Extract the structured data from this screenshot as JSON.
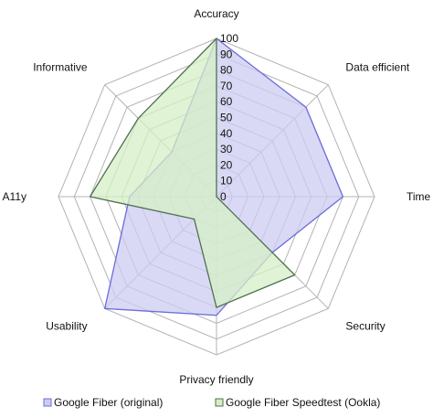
{
  "chart_data": {
    "type": "radar",
    "axes": [
      "Accuracy",
      "Data efficient",
      "Time",
      "Security",
      "Privacy friendly",
      "Usability",
      "A11y",
      "Informative"
    ],
    "ticks": [
      0,
      10,
      20,
      30,
      40,
      50,
      60,
      70,
      80,
      90,
      100
    ],
    "rlim": [
      0,
      100
    ],
    "grid": true,
    "legend": "bottom",
    "series": [
      {
        "name": "Google Fiber (original)",
        "values": [
          100,
          80,
          80,
          50,
          75,
          100,
          55,
          40
        ],
        "fill": "#ccccf2",
        "stroke": "#6b6bdc"
      },
      {
        "name": "Google Fiber Speedtest (Ookla)",
        "values": [
          100,
          0,
          0,
          70,
          70,
          20,
          80,
          70
        ],
        "fill": "#d6efc6",
        "stroke": "#507050"
      }
    ]
  }
}
